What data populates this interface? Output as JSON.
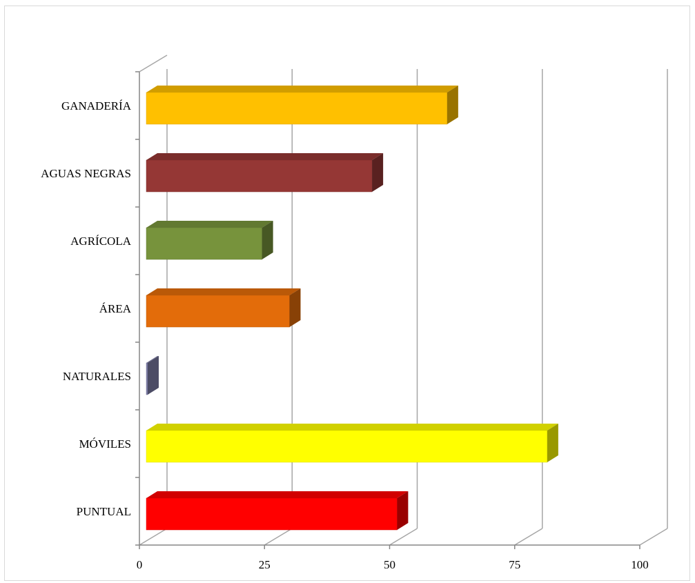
{
  "chart_data": {
    "type": "bar",
    "orientation": "horizontal",
    "style": "3d",
    "categories": [
      "PUNTUAL",
      "MÓVILES",
      "NATURALES",
      "ÁREA",
      "AGRÍCOLA",
      "AGUAS NEGRAS",
      "GANADERÍA"
    ],
    "values": [
      51.5,
      81.5,
      0.5,
      30,
      24.5,
      46.5,
      61.5
    ],
    "colors": [
      "#ff0000",
      "#ffff00",
      "#7f7fa8",
      "#e36c0a",
      "#77933c",
      "#953735",
      "#ffc000"
    ],
    "xlim": [
      0,
      100
    ],
    "x_ticks": [
      "0",
      "25",
      "50",
      "75",
      "100"
    ],
    "grid": true,
    "legend": "none",
    "title": "",
    "xlabel": "",
    "ylabel": ""
  }
}
